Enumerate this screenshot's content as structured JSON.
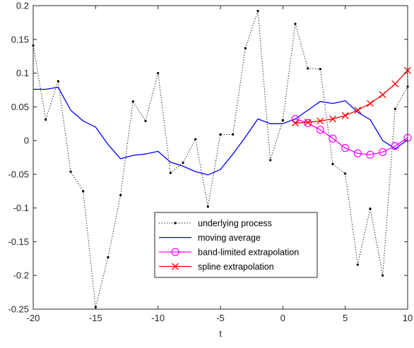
{
  "chart_data": {
    "type": "line",
    "title": "",
    "xlabel": "t",
    "ylabel": "",
    "xlim": [
      -20,
      10
    ],
    "ylim": [
      -0.25,
      0.2
    ],
    "xticks": [
      -20,
      -15,
      -10,
      -5,
      0,
      5,
      10
    ],
    "yticks": [
      -0.25,
      -0.2,
      -0.15,
      -0.1,
      -0.05,
      0,
      0.05,
      0.1,
      0.15,
      0.2
    ],
    "xtick_labels": [
      "-20",
      "-15",
      "-10",
      "-5",
      "0",
      "5",
      "10"
    ],
    "ytick_labels": [
      "-0.25",
      "-0.2",
      "-0.15",
      "-0.1",
      "-0.05",
      "0",
      "0.05",
      "0.1",
      "0.15",
      "0.2"
    ],
    "grid": false,
    "legend_position": "lower-center",
    "series": [
      {
        "name": "underlying process",
        "color": "#000000",
        "style": "dotted",
        "marker": "dot",
        "x": [
          -20,
          -19,
          -18,
          -17,
          -16,
          -15,
          -14,
          -13,
          -12,
          -11,
          -10,
          -9,
          -8,
          -7,
          -6,
          -5,
          -4,
          -3,
          -2,
          -1,
          0,
          1,
          2,
          3,
          4,
          5,
          6,
          7,
          8,
          9,
          10
        ],
        "y": [
          0.141,
          0.031,
          0.088,
          -0.046,
          -0.075,
          -0.247,
          -0.173,
          -0.081,
          0.058,
          0.029,
          0.1,
          -0.048,
          -0.033,
          0.002,
          -0.098,
          0.009,
          0.009,
          0.137,
          0.192,
          -0.029,
          0.03,
          0.173,
          0.107,
          0.106,
          -0.035,
          -0.049,
          -0.184,
          -0.101,
          -0.2,
          0.047,
          0.08
        ]
      },
      {
        "name": "moving average",
        "color": "#0000ff",
        "style": "solid",
        "marker": "none",
        "x": [
          -20,
          -19,
          -18,
          -17,
          -16,
          -15,
          -14,
          -13,
          -12,
          -11,
          -10,
          -9,
          -8,
          -7,
          -6,
          -5,
          -4,
          -3,
          -2,
          -1,
          0,
          1,
          2,
          3,
          4,
          5,
          6,
          7,
          8,
          9,
          10
        ],
        "y": [
          0.076,
          0.076,
          0.079,
          0.045,
          0.029,
          0.02,
          -0.006,
          -0.027,
          -0.022,
          -0.02,
          -0.016,
          -0.032,
          -0.038,
          -0.046,
          -0.051,
          -0.043,
          -0.02,
          0.005,
          0.032,
          0.025,
          0.025,
          0.032,
          0.045,
          0.058,
          0.055,
          0.059,
          0.042,
          0.031,
          0.0,
          -0.012,
          0.001
        ]
      },
      {
        "name": "band-limited extrapolation",
        "color": "#ff00ff",
        "style": "solid",
        "marker": "circle",
        "x": [
          1,
          2,
          3,
          4,
          5,
          6,
          7,
          8,
          9,
          10
        ],
        "y": [
          0.032,
          0.026,
          0.016,
          0.003,
          -0.011,
          -0.019,
          -0.021,
          -0.017,
          -0.008,
          0.004
        ]
      },
      {
        "name": "spline extrapolation",
        "color": "#ff0000",
        "style": "solid",
        "marker": "x",
        "x": [
          1,
          2,
          3,
          4,
          5,
          6,
          7,
          8,
          9,
          10
        ],
        "y": [
          0.026,
          0.027,
          0.029,
          0.032,
          0.037,
          0.045,
          0.055,
          0.068,
          0.084,
          0.104
        ]
      }
    ]
  }
}
